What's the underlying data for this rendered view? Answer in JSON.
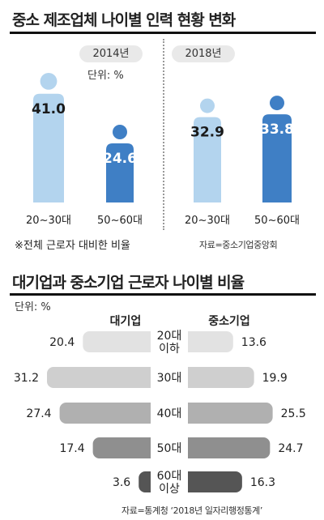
{
  "chart_data": [
    {
      "type": "bar",
      "title": "중소 제조업체 나이별 인력 현황 변화",
      "unit_label": "단위: %",
      "panels": [
        {
          "year": "2014년",
          "categories": [
            "20~30대",
            "50~60대"
          ],
          "values": [
            41.0,
            24.6
          ],
          "value_labels": [
            "41.0",
            "24.6"
          ]
        },
        {
          "year": "2018년",
          "categories": [
            "20~30대",
            "50~60대"
          ],
          "values": [
            32.9,
            33.8
          ],
          "value_labels": [
            "32.9",
            "33.8"
          ]
        }
      ],
      "note": "※전체 근로자 대비한 비율",
      "source": "자료=중소기업중앙회",
      "colors": {
        "young": "#b3d4ee",
        "old": "#3f7fc5"
      }
    },
    {
      "type": "bar",
      "orientation": "horizontal-butterfly",
      "title": "대기업과 중소기업 근로자 나이별 비율",
      "unit_label": "단위: %",
      "categories": [
        "20대\n이하",
        "30대",
        "40대",
        "50대",
        "60대\n이상"
      ],
      "series": [
        {
          "name": "대기업",
          "values": [
            20.4,
            31.2,
            27.4,
            17.4,
            3.6
          ],
          "value_labels": [
            "20.4",
            "31.2",
            "27.4",
            "17.4",
            "3.6"
          ]
        },
        {
          "name": "중소기업",
          "values": [
            13.6,
            19.9,
            25.5,
            24.7,
            16.3
          ],
          "value_labels": [
            "13.6",
            "19.9",
            "25.5",
            "24.7",
            "16.3"
          ]
        }
      ],
      "bar_colors": [
        "#e2e2e2",
        "#cfcfcf",
        "#b0b0b0",
        "#8f8f8f",
        "#555555"
      ],
      "source": "자료=통계청 ‘2018년 일자리행정통계’"
    }
  ]
}
